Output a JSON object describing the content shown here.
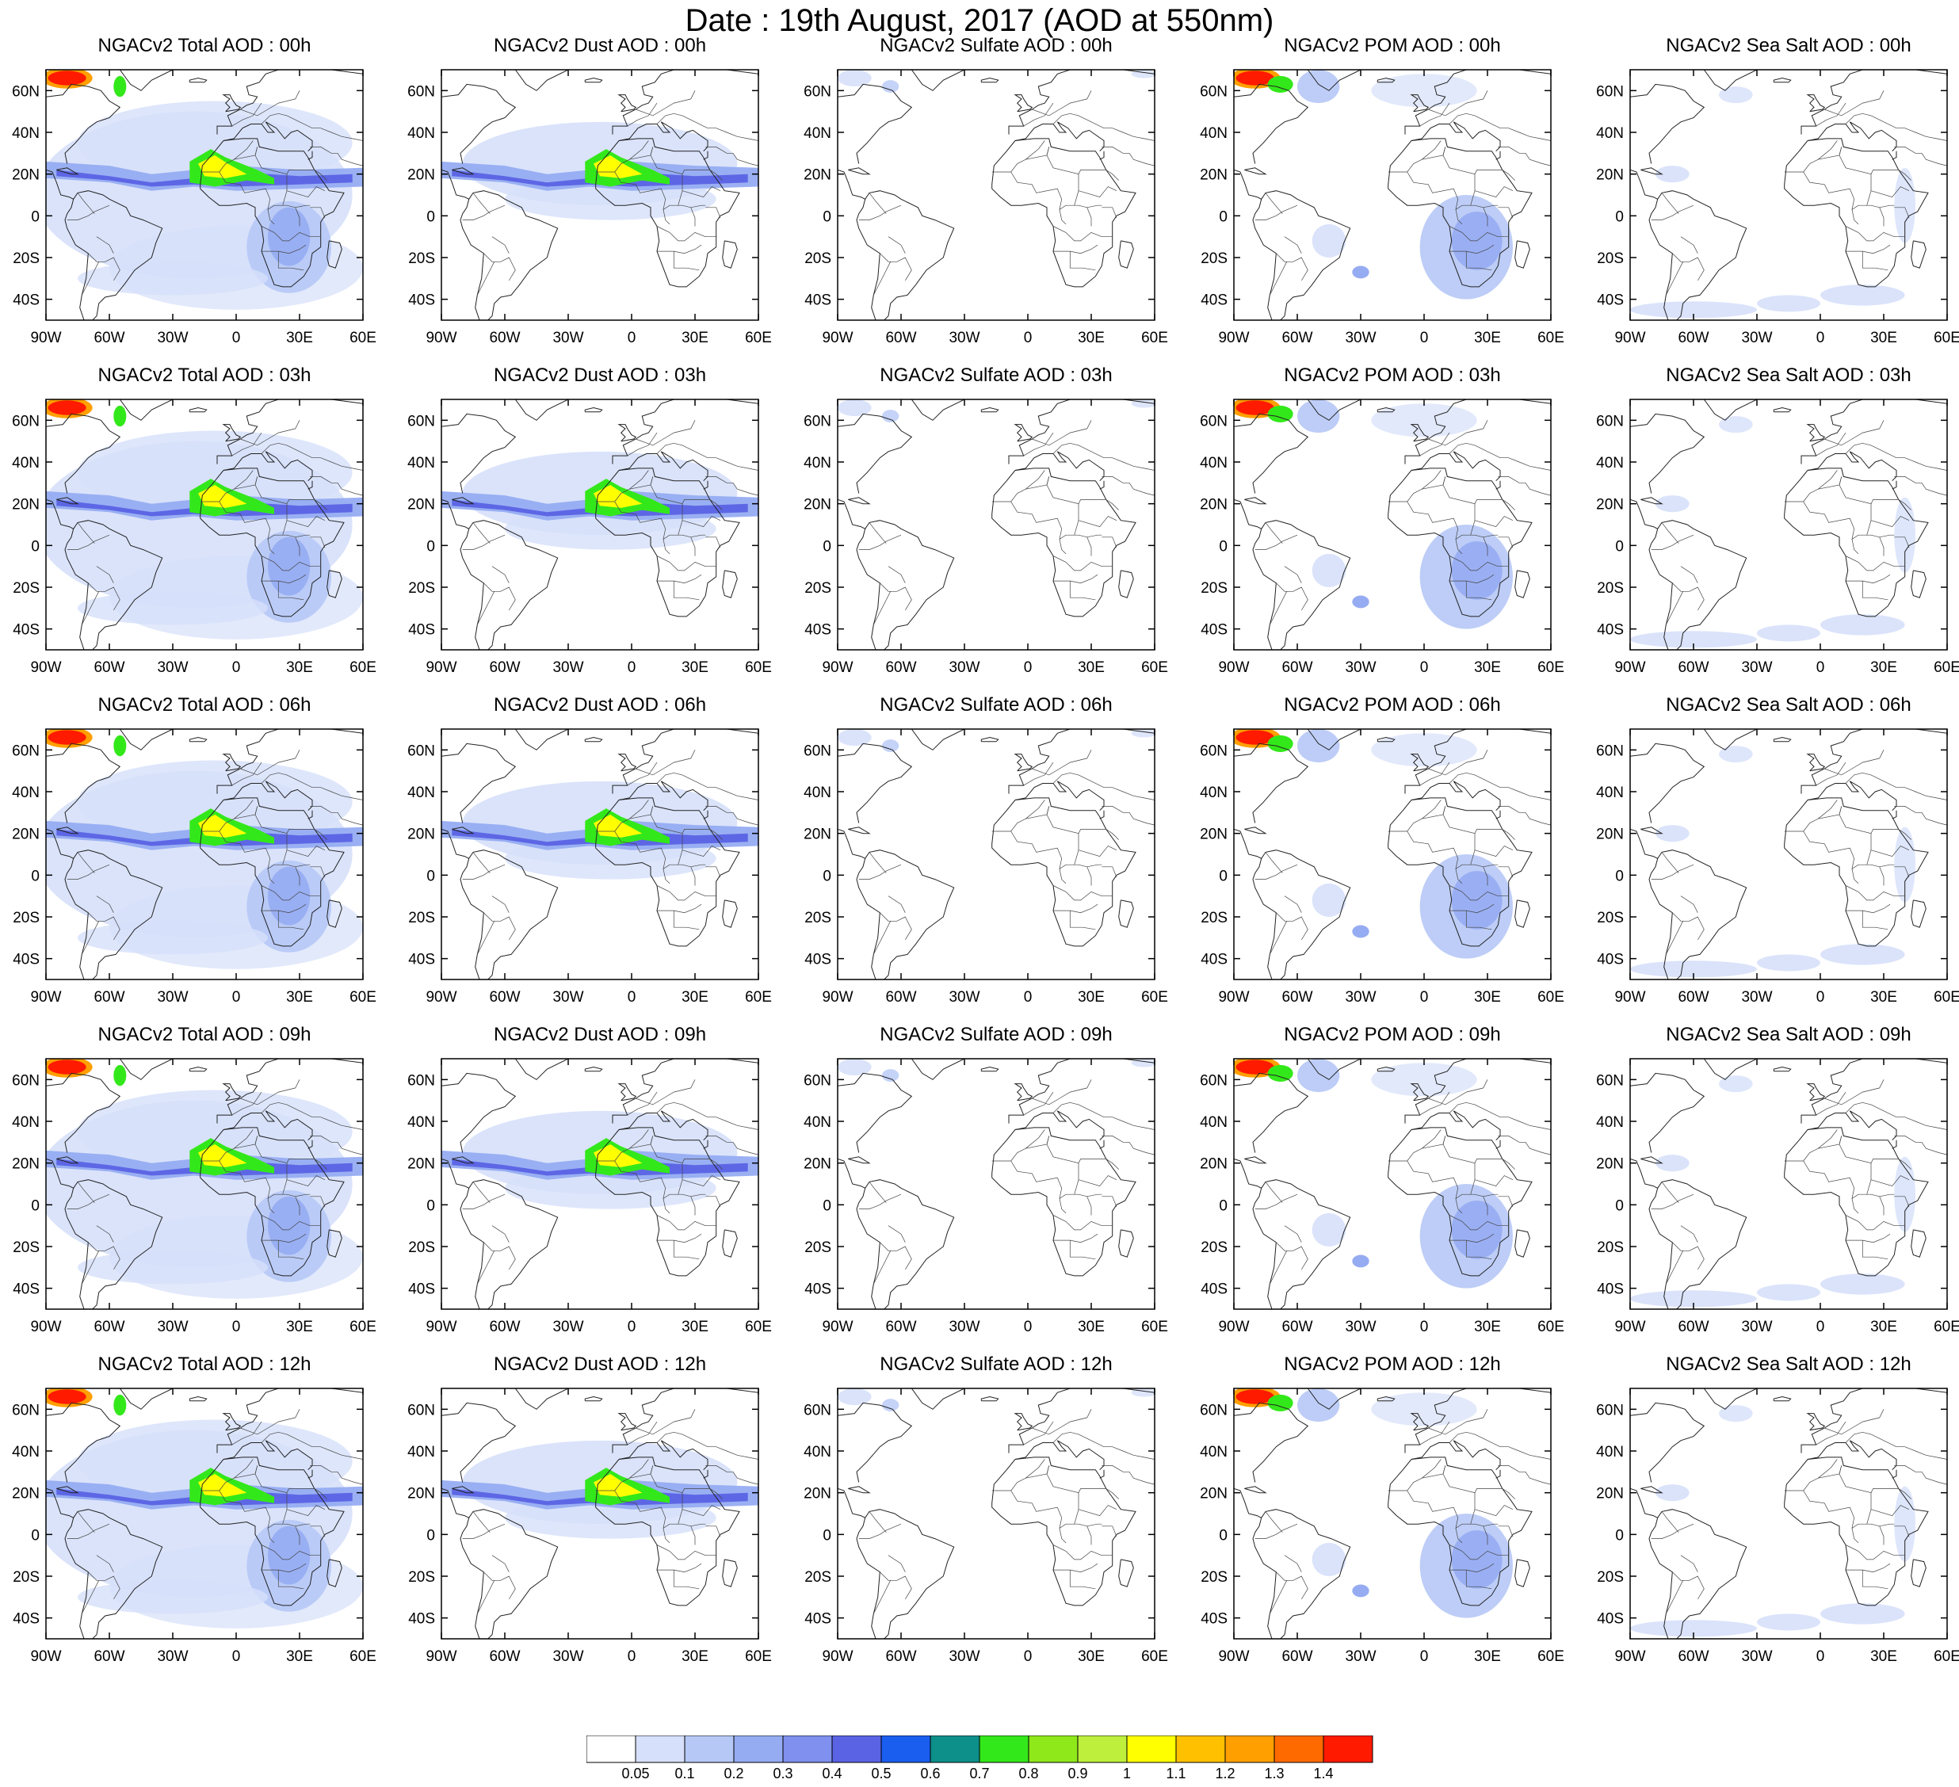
{
  "title": "Date : 19th August, 2017 (AOD at 550nm)",
  "lon_ticks": [
    "90W",
    "60W",
    "30W",
    "0",
    "30E",
    "60E"
  ],
  "lat_ticks": [
    "60N",
    "40N",
    "20N",
    "0",
    "20S",
    "40S"
  ],
  "extent": {
    "lon": [
      -90,
      60
    ],
    "lat": [
      -50,
      70
    ]
  },
  "species": [
    {
      "key": "total",
      "label_col": "Total"
    },
    {
      "key": "dust",
      "label_col": "Dust"
    },
    {
      "key": "sulfate",
      "label_col": "Sulfate"
    },
    {
      "key": "pom",
      "label_col": "POM"
    },
    {
      "key": "seasalt",
      "label_col": "Sea Salt"
    }
  ],
  "panels": [
    [
      "NGACv2 Total AOD : 00h",
      "NGACv2 Dust AOD : 00h",
      "NGACv2 Sulfate AOD : 00h",
      "NGACv2 POM AOD : 00h",
      "NGACv2 Sea Salt AOD : 00h"
    ],
    [
      "NGACv2 Total AOD : 03h",
      "NGACv2 Dust AOD : 03h",
      "NGACv2 Sulfate AOD : 03h",
      "NGACv2 POM AOD : 03h",
      "NGACv2 Sea Salt AOD : 03h"
    ],
    [
      "NGACv2 Total AOD : 06h",
      "NGACv2 Dust AOD : 06h",
      "NGACv2 Sulfate AOD : 06h",
      "NGACv2 POM AOD : 06h",
      "NGACv2 Sea Salt AOD : 06h"
    ],
    [
      "NGACv2 Total AOD : 09h",
      "NGACv2 Dust AOD : 09h",
      "NGACv2 Sulfate AOD : 09h",
      "NGACv2 POM AOD : 09h",
      "NGACv2 Sea Salt  AOD : 09h"
    ],
    [
      "NGACv2 Total AOD  : 12h",
      "NGACv2 Dust AOD : 12h",
      "NGACv2 Sulfate AOD : 12h",
      "NGACv2 POM  AOD : 12h",
      "NGACv2 Sea Salt  AOD : 12h"
    ]
  ],
  "colorbar": {
    "labels": [
      "0.05",
      "0.1",
      "0.2",
      "0.3",
      "0.4",
      "0.5",
      "0.6",
      "0.7",
      "0.8",
      "0.9",
      "1",
      "1.1",
      "1.2",
      "1.3",
      "1.4"
    ],
    "colors": [
      "#ffffff",
      "#d6e0fa",
      "#b6c8f6",
      "#96acf2",
      "#7f90ee",
      "#5a63e4",
      "#1a5ef0",
      "#0d8f8a",
      "#33e81a",
      "#8ee81a",
      "#bdef3c",
      "#ffff00",
      "#ffc000",
      "#ff9f00",
      "#ff6a00",
      "#ff1a00"
    ]
  }
}
